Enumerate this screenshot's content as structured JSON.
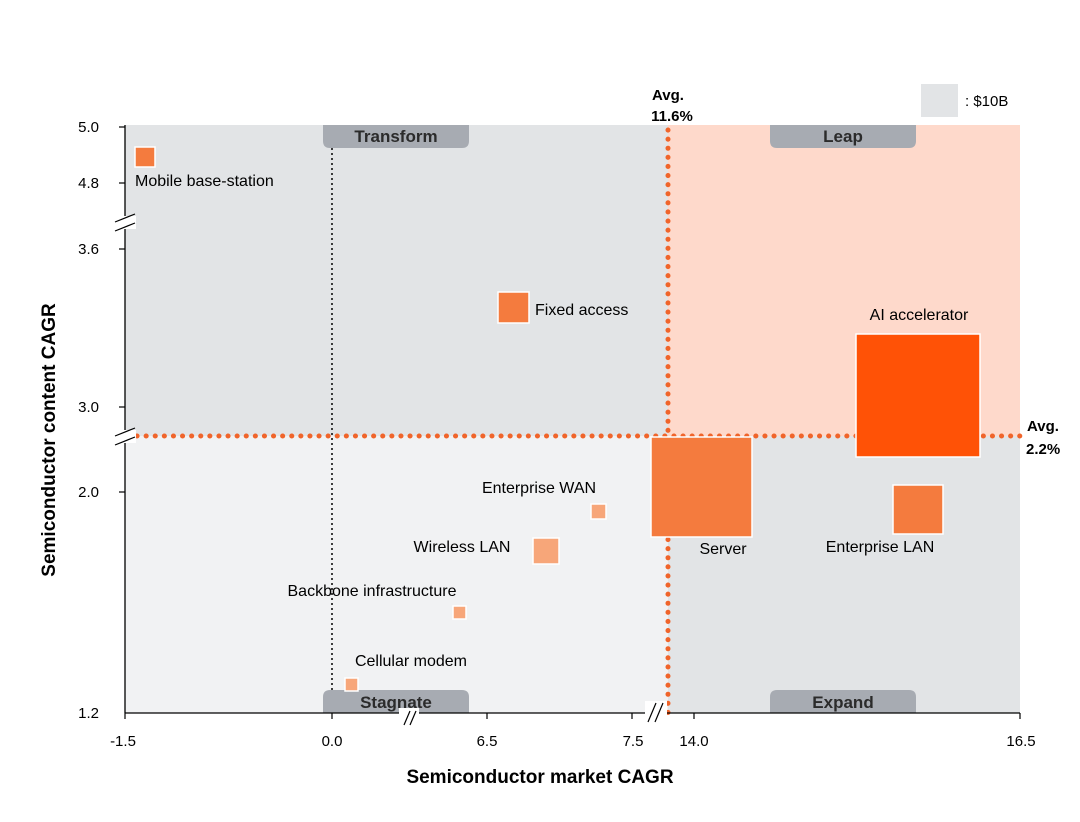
{
  "chart_data": {
    "type": "bubble-quadrant",
    "xlabel": "Semiconductor market CAGR",
    "ylabel": "Semiconductor content CAGR",
    "x_ticks": [
      "-1.5",
      "0.0",
      "6.5",
      "7.5",
      "14.0",
      "16.5"
    ],
    "y_ticks": [
      "1.2",
      "2.0",
      "3.0",
      "3.6",
      "4.8",
      "5.0"
    ],
    "x_avg": {
      "label": "Avg.",
      "value": "11.6%"
    },
    "y_avg": {
      "label": "Avg.",
      "value": "2.2%"
    },
    "legend": {
      "label": ": $10B"
    },
    "quadrants": [
      "Transform",
      "Leap",
      "Stagnate",
      "Expand"
    ],
    "series": [
      {
        "name": "Mobile base-station",
        "x": -1.4,
        "y": 4.87,
        "size": 0.4,
        "color": "#f47b3e"
      },
      {
        "name": "Fixed access",
        "x": 5.8,
        "y": 3.45,
        "size": 0.8,
        "color": "#f47b3e"
      },
      {
        "name": "AI accelerator",
        "x": 15.9,
        "y": 2.85,
        "size": 13.0,
        "color": "#ff5206"
      },
      {
        "name": "Server",
        "x": 14.0,
        "y": 2.2,
        "size": 9.0,
        "color": "#f47b3e"
      },
      {
        "name": "Enterprise LAN",
        "x": 16.0,
        "y": 1.85,
        "size": 2.2,
        "color": "#f47b3e"
      },
      {
        "name": "Enterprise WAN",
        "x": 7.0,
        "y": 1.88,
        "size": 0.2,
        "color": "#f7a679"
      },
      {
        "name": "Wireless LAN",
        "x": 6.3,
        "y": 1.75,
        "size": 0.5,
        "color": "#f7a679"
      },
      {
        "name": "Backbone infrastructure",
        "x": 4.3,
        "y": 1.55,
        "size": 0.15,
        "color": "#f7a679"
      },
      {
        "name": "Cellular modem",
        "x": 0.4,
        "y": 1.25,
        "size": 0.15,
        "color": "#f7a679"
      }
    ]
  },
  "colors": {
    "accent": "#f0642a",
    "leap": "#fed9cb",
    "grey": "#e2e4e6",
    "light_grey": "#f1f2f3",
    "tab": "#a7abb2"
  }
}
